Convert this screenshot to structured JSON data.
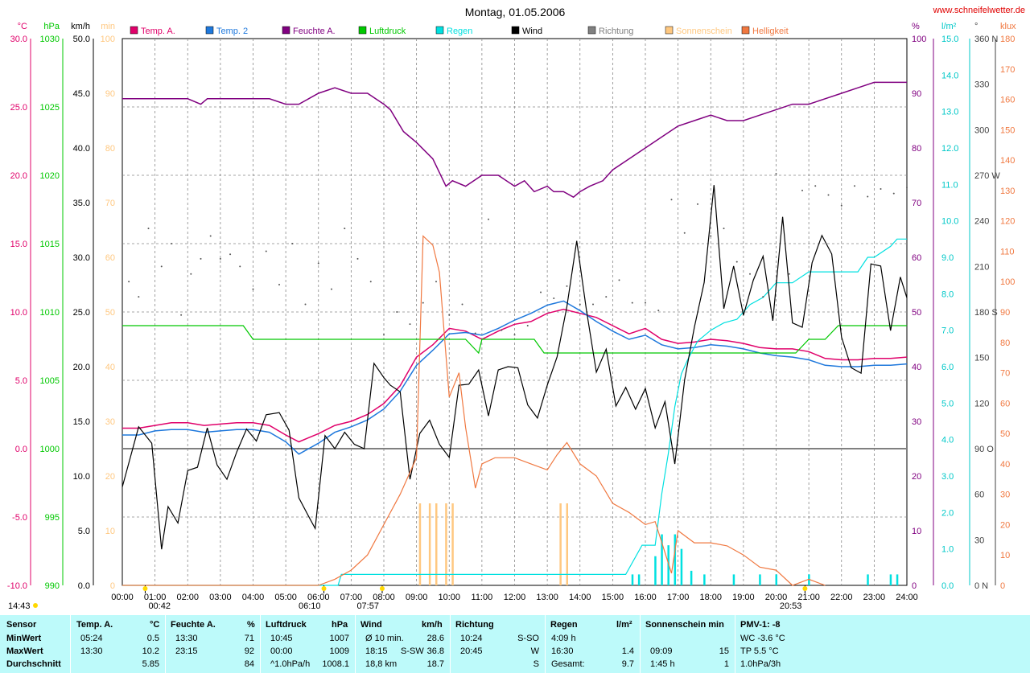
{
  "title": "Montag, 01.05.2006",
  "website": "www.schneifelwetter.de",
  "colors": {
    "temp_a": "#e0006a",
    "temp_2": "#1e78dc",
    "feuchte": "#800080",
    "luftdruck": "#00c800",
    "regen": "#00e0e0",
    "wind": "#000000",
    "richtung": "#808080",
    "sonnenschein": "#ffc880",
    "helligkeit": "#f07840",
    "stats_bg": "#bdfafa"
  },
  "legend": [
    {
      "label": "Temp. A.",
      "color": "#e0006a"
    },
    {
      "label": "Temp. 2",
      "color": "#1e78dc"
    },
    {
      "label": "Feuchte A.",
      "color": "#800080"
    },
    {
      "label": "Luftdruck",
      "color": "#00c800"
    },
    {
      "label": "Regen",
      "color": "#00e0e0"
    },
    {
      "label": "Wind",
      "color": "#000000"
    },
    {
      "label": "Richtung",
      "color": "#808080"
    },
    {
      "label": "Sonnenschein",
      "color": "#ffc880"
    },
    {
      "label": "Helligkeit",
      "color": "#f07840"
    }
  ],
  "axes": {
    "temp": {
      "unit": "°C",
      "ticks": [
        "30.0",
        "25.0",
        "20.0",
        "15.0",
        "10.0",
        "5.0",
        "0.0",
        "-5.0",
        "-10.0"
      ],
      "color": "#e0006a"
    },
    "hpa": {
      "unit": "hPa",
      "ticks": [
        "1030",
        "1025",
        "1020",
        "1015",
        "1010",
        "1005",
        "1000",
        "995",
        "990"
      ],
      "color": "#00c800"
    },
    "kmh": {
      "unit": "km/h",
      "ticks": [
        "50.0",
        "45.0",
        "40.0",
        "35.0",
        "30.0",
        "25.0",
        "20.0",
        "15.0",
        "10.0",
        "5.0",
        "0.0"
      ],
      "color": "#000000"
    },
    "min": {
      "unit": "min",
      "ticks": [
        "100",
        "90",
        "80",
        "70",
        "60",
        "50",
        "40",
        "30",
        "20",
        "10",
        "0"
      ],
      "color": "#ffc880"
    },
    "pct": {
      "unit": "%",
      "ticks": [
        "100",
        "90",
        "80",
        "70",
        "60",
        "50",
        "40",
        "30",
        "20",
        "10",
        "0"
      ],
      "color": "#800080"
    },
    "rain": {
      "unit": "l/m²",
      "ticks": [
        "15.0",
        "14.0",
        "13.0",
        "12.0",
        "11.0",
        "10.0",
        "9.0",
        "8.0",
        "7.0",
        "6.0",
        "5.0",
        "4.0",
        "3.0",
        "2.0",
        "1.0",
        "0.0"
      ],
      "color": "#00c8c8"
    },
    "dir": {
      "unit": "°",
      "ticks": [
        "360 N",
        "330",
        "300",
        "270 W",
        "240",
        "210",
        "180 S",
        "150",
        "120",
        "90 O",
        "60",
        "30",
        "0 N"
      ],
      "color": "#404040"
    },
    "klux": {
      "unit": "klux",
      "ticks": [
        "180",
        "170",
        "160",
        "150",
        "140",
        "130",
        "120",
        "110",
        "100",
        "90",
        "80",
        "70",
        "60",
        "50",
        "40",
        "30",
        "20",
        "10",
        "0"
      ],
      "color": "#f07840"
    },
    "time": {
      "ticks": [
        "00:00",
        "01:00",
        "02:00",
        "03:00",
        "04:00",
        "05:00",
        "06:00",
        "07:00",
        "08:00",
        "09:00",
        "10:00",
        "11:00",
        "12:00",
        "13:00",
        "14:00",
        "15:00",
        "16:00",
        "17:00",
        "18:00",
        "19:00",
        "20:00",
        "21:00",
        "22:00",
        "23:00",
        "24:00"
      ]
    }
  },
  "markers": {
    "sunrise_left": "14:43",
    "moon_marker": "00:42",
    "sunrise": "06:10",
    "sun_max": "07:57",
    "sunset": "20:53"
  },
  "chart_data": {
    "type": "line",
    "title": "Montag, 01.05.2006",
    "xlim": [
      0,
      24
    ],
    "series": [
      {
        "name": "Temp. A.",
        "axis": "temp",
        "ylim": [
          -10,
          30
        ],
        "x": [
          0,
          0.5,
          1,
          1.5,
          2,
          2.5,
          3,
          3.5,
          4,
          4.5,
          5,
          5.4,
          6,
          6.5,
          7,
          7.5,
          8,
          8.5,
          9,
          9.5,
          10,
          10.5,
          11,
          11.5,
          12,
          12.5,
          13,
          13.5,
          14,
          14.5,
          15,
          15.5,
          16,
          16.5,
          17,
          17.5,
          18,
          18.5,
          19,
          19.5,
          20,
          20.5,
          21,
          21.5,
          22,
          22.5,
          23,
          23.5,
          24
        ],
        "y": [
          1.5,
          1.5,
          1.7,
          1.9,
          1.9,
          1.7,
          1.8,
          1.9,
          1.9,
          1.7,
          1.0,
          0.5,
          1.1,
          1.7,
          2.0,
          2.5,
          3.3,
          4.6,
          6.7,
          7.6,
          8.8,
          8.6,
          8.0,
          8.6,
          9.1,
          9.3,
          9.9,
          10.2,
          9.9,
          9.6,
          9.0,
          8.4,
          8.8,
          8.0,
          7.7,
          7.8,
          8.0,
          7.9,
          7.7,
          7.4,
          7.3,
          7.3,
          7.1,
          6.6,
          6.5,
          6.5,
          6.6,
          6.6,
          6.7
        ]
      },
      {
        "name": "Temp. 2",
        "axis": "temp",
        "ylim": [
          -10,
          30
        ],
        "x": [
          0,
          0.5,
          1,
          1.5,
          2,
          2.5,
          3,
          3.5,
          4,
          4.5,
          5,
          5.4,
          6,
          6.5,
          7,
          7.5,
          8,
          8.5,
          9,
          9.5,
          10,
          10.5,
          11,
          11.5,
          12,
          12.5,
          13,
          13.5,
          14,
          14.5,
          15,
          15.5,
          16,
          16.5,
          17,
          17.5,
          18,
          18.5,
          19,
          19.5,
          20,
          20.5,
          21,
          21.5,
          22,
          22.5,
          23,
          23.5,
          24
        ],
        "y": [
          1.0,
          1.0,
          1.3,
          1.4,
          1.4,
          1.2,
          1.3,
          1.4,
          1.4,
          1.2,
          0.5,
          -0.4,
          0.4,
          1.2,
          1.6,
          2.1,
          2.9,
          4.2,
          6.1,
          7.2,
          8.4,
          8.5,
          8.3,
          8.8,
          9.4,
          9.9,
          10.5,
          10.8,
          10.1,
          9.3,
          8.6,
          8.0,
          8.3,
          7.6,
          7.3,
          7.4,
          7.6,
          7.5,
          7.3,
          7.0,
          6.8,
          6.7,
          6.5,
          6.1,
          6.0,
          6.0,
          6.1,
          6.1,
          6.2
        ]
      },
      {
        "name": "Feuchte A.",
        "axis": "pct",
        "ylim": [
          0,
          100
        ],
        "x": [
          0,
          1,
          2,
          2.4,
          2.6,
          3,
          4,
          4.5,
          5,
          5.4,
          6,
          6.5,
          7,
          7.5,
          8,
          8.2,
          8.6,
          9,
          9.5,
          9.9,
          10.1,
          10.5,
          11,
          11.5,
          12,
          12.3,
          12.6,
          13,
          13.2,
          13.5,
          13.8,
          14,
          14.3,
          14.7,
          15,
          15.5,
          16,
          16.5,
          17,
          17.5,
          18,
          18.5,
          19,
          19.5,
          20,
          20.5,
          21,
          21.5,
          22,
          22.5,
          23,
          24
        ],
        "y": [
          89,
          89,
          89,
          88,
          89,
          89,
          89,
          89,
          88,
          88,
          90,
          91,
          90,
          90,
          88,
          87,
          83,
          81,
          78,
          73,
          74,
          73,
          75,
          75,
          73,
          74,
          72,
          73,
          72,
          72,
          71,
          72,
          73,
          74,
          76,
          78,
          80,
          82,
          84,
          85,
          86,
          85,
          85,
          86,
          87,
          88,
          88,
          89,
          90,
          91,
          92,
          92
        ]
      },
      {
        "name": "Luftdruck",
        "axis": "hpa",
        "ylim": [
          990,
          1030
        ],
        "x": [
          0,
          3.7,
          4,
          10.5,
          10.9,
          11,
          12.6,
          12.9,
          20,
          20.6,
          21,
          21.5,
          21.9,
          24
        ],
        "y": [
          1009,
          1009,
          1008,
          1008,
          1007,
          1008,
          1008,
          1007,
          1007,
          1007,
          1008,
          1008,
          1009,
          1009
        ]
      },
      {
        "name": "Regen",
        "axis": "rain",
        "ylim": [
          0,
          15
        ],
        "x": [
          0,
          6.6,
          6.7,
          15.4,
          15.9,
          16.3,
          16.5,
          16.7,
          16.9,
          17.1,
          17.3,
          17.6,
          18,
          18.4,
          18.8,
          19.2,
          19.6,
          20,
          20.5,
          21,
          21.5,
          22,
          22.5,
          22.8,
          23,
          23.5,
          23.7,
          24
        ],
        "y": [
          0,
          0,
          0.3,
          0.3,
          1.1,
          1.1,
          2.5,
          3.6,
          4.9,
          5.8,
          6.2,
          6.7,
          7.0,
          7.2,
          7.3,
          7.7,
          7.9,
          8.3,
          8.3,
          8.6,
          8.6,
          8.6,
          8.6,
          9.0,
          9.0,
          9.3,
          9.5,
          9.5
        ]
      },
      {
        "name": "Wind",
        "axis": "kmh",
        "ylim": [
          0,
          50
        ],
        "x": [
          0,
          0.5,
          0.9,
          1.2,
          1.4,
          1.7,
          2.0,
          2.3,
          2.6,
          2.9,
          3.2,
          3.5,
          3.8,
          4.1,
          4.4,
          4.8,
          5.1,
          5.4,
          5.7,
          5.9,
          6.2,
          6.5,
          6.8,
          7.1,
          7.4,
          7.7,
          8.0,
          8.2,
          8.5,
          8.8,
          9.1,
          9.4,
          9.7,
          10.0,
          10.3,
          10.6,
          10.9,
          11.2,
          11.5,
          11.8,
          12.1,
          12.4,
          12.7,
          13.0,
          13.3,
          13.6,
          13.9,
          14.2,
          14.5,
          14.8,
          15.1,
          15.4,
          15.7,
          16.0,
          16.3,
          16.6,
          16.9,
          17.2,
          17.5,
          17.8,
          18.1,
          18.4,
          18.7,
          19.0,
          19.3,
          19.6,
          19.9,
          20.2,
          20.5,
          20.8,
          21.1,
          21.4,
          21.7,
          22.0,
          22.3,
          22.6,
          22.9,
          23.2,
          23.5,
          23.8,
          24.0
        ],
        "y": [
          9,
          14.5,
          13,
          3.3,
          7.2,
          5.7,
          10.5,
          10.8,
          14.4,
          11.0,
          9.7,
          12.2,
          14.3,
          13.2,
          15.6,
          15.8,
          14.2,
          8,
          6.3,
          5.2,
          13.7,
          12.5,
          14.0,
          12.9,
          12.5,
          20.3,
          19.0,
          18.3,
          17.7,
          9.7,
          13.9,
          15.1,
          12.9,
          11.7,
          18.3,
          18.4,
          19.7,
          15.5,
          19.7,
          20.0,
          19.9,
          16.5,
          15.3,
          18.3,
          20.9,
          25.5,
          31.5,
          25.1,
          19.5,
          21.6,
          16.4,
          18.1,
          16.1,
          18.0,
          14.4,
          16.8,
          11.1,
          18.8,
          23.6,
          27.7,
          36.6,
          25.3,
          29.2,
          24.7,
          27.9,
          30.1,
          24.2,
          33.7,
          24.0,
          23.6,
          29.5,
          32.0,
          30.3,
          22.7,
          19.9,
          19.4,
          29.4,
          29.2,
          23.3,
          28.2,
          26.3
        ]
      },
      {
        "name": "Helligkeit",
        "axis": "klux",
        "ylim": [
          0,
          180
        ],
        "x": [
          0,
          6,
          6.5,
          7,
          7.5,
          8,
          8.5,
          9,
          9.2,
          9.5,
          9.7,
          10,
          10.3,
          10.5,
          10.8,
          11,
          11.4,
          12,
          12.5,
          13,
          13.3,
          13.6,
          14,
          14.5,
          15,
          15.5,
          16,
          16.3,
          16.8,
          17,
          17.5,
          18,
          18.5,
          19,
          19.5,
          20,
          20.5,
          21,
          21.5
        ],
        "y": [
          0,
          0,
          2,
          5,
          10,
          20,
          30,
          42,
          115,
          112,
          103,
          62,
          70,
          52,
          32,
          40,
          42,
          42,
          40,
          38,
          43,
          47,
          40,
          36,
          27,
          24,
          20,
          21,
          4,
          18,
          14,
          14,
          13,
          10,
          6,
          5,
          0,
          2,
          0
        ]
      }
    ],
    "scatter": [
      {
        "name": "Richtung",
        "axis": "dir",
        "ylim": [
          0,
          360
        ],
        "x": [
          0.2,
          0.5,
          0.8,
          1.2,
          1.5,
          1.8,
          2.1,
          2.4,
          2.7,
          3.0,
          3.3,
          3.6,
          4.0,
          4.4,
          4.8,
          5.2,
          5.6,
          6.0,
          6.4,
          6.8,
          7.2,
          7.6,
          8.0,
          8.4,
          8.8,
          9.2,
          9.6,
          10.0,
          10.4,
          10.8,
          11.2,
          11.6,
          12.0,
          12.4,
          12.8,
          13.2,
          13.6,
          14.0,
          14.4,
          14.8,
          15.2,
          15.6,
          16.0,
          16.4,
          16.8,
          17.2,
          17.6,
          18.0,
          18.4,
          18.8,
          19.2,
          19.6,
          20.0,
          20.4,
          20.8,
          21.2,
          21.6,
          22.0,
          22.4,
          22.8,
          23.2,
          23.6,
          24.0
        ],
        "y": [
          200,
          190,
          235,
          210,
          225,
          178,
          205,
          215,
          230,
          215,
          218,
          210,
          195,
          220,
          198,
          225,
          185,
          212,
          195,
          235,
          215,
          200,
          165,
          180,
          172,
          186,
          200,
          178,
          185,
          166,
          241,
          168,
          165,
          171,
          193,
          189,
          197,
          185,
          185,
          190,
          201,
          186,
          186,
          181,
          254,
          232,
          251,
          230,
          235,
          213,
          205,
          190,
          271,
          205,
          260,
          263,
          257,
          250,
          263,
          256,
          261,
          258,
          262
        ]
      }
    ],
    "bars": [
      {
        "name": "Sonnenschein",
        "axis": "min",
        "ylim": [
          0,
          100
        ],
        "width_h": 0.07,
        "x": [
          9.1,
          9.4,
          9.6,
          9.9,
          10.1,
          13.4,
          13.6
        ],
        "y": [
          15,
          15,
          15,
          15,
          15,
          15,
          15
        ]
      },
      {
        "name": "Regen (Menge)",
        "axis": "rain",
        "ylim": [
          0,
          15
        ],
        "width_h": 0.07,
        "x": [
          15.6,
          15.8,
          16.3,
          16.5,
          16.7,
          16.9,
          17.1,
          17.4,
          17.8,
          18.7,
          19.5,
          20.0,
          21.0,
          22.8,
          23.5,
          23.7
        ],
        "y": [
          0.3,
          0.3,
          0.8,
          1.4,
          1.1,
          1.4,
          1.0,
          0.4,
          0.3,
          0.3,
          0.3,
          0.3,
          0.3,
          0.3,
          0.3,
          0.3
        ]
      }
    ]
  },
  "stats": {
    "headers": {
      "sensor": "Sensor",
      "temp": "Temp. A.",
      "temp_unit": "°C",
      "feuchte": "Feuchte A.",
      "feuchte_unit": "%",
      "druck": "Luftdruck",
      "druck_unit": "hPa",
      "wind": "Wind",
      "wind_unit": "km/h",
      "richtung": "Richtung",
      "regen": "Regen",
      "regen_unit": "l/m²",
      "sonne": "Sonnenschein min",
      "pmv": "PMV-1: -8"
    },
    "rows": [
      {
        "label": "MinWert",
        "temp_time": "05:24",
        "temp_val": "0.5",
        "feuchte_time": "13:30",
        "feuchte_val": "71",
        "druck_time": "10:45",
        "druck_val": "1007",
        "wind_time": "Ø 10 min.",
        "wind_val": "28.6",
        "richtung_time": "10:24",
        "richtung_val": "S-SO",
        "regen_time": "4:09 h",
        "regen_val": "",
        "sonne_time": "",
        "sonne_val": "",
        "pmv": "WC -3.6 °C"
      },
      {
        "label": "MaxWert",
        "temp_time": "13:30",
        "temp_val": "10.2",
        "feuchte_time": "23:15",
        "feuchte_val": "92",
        "druck_time": "00:00",
        "druck_val": "1009",
        "wind_time": "18:15",
        "wind_extra": "S-SW",
        "wind_val": "36.8",
        "richtung_time": "20:45",
        "richtung_val": "W",
        "regen_time": "16:30",
        "regen_val": "1.4",
        "sonne_time": "09:09",
        "sonne_val": "15",
        "pmv": "TP 5.5 °C"
      },
      {
        "label": "Durchschnitt",
        "temp_time": "",
        "temp_val": "5.85",
        "feuchte_time": "",
        "feuchte_val": "84",
        "druck_time": "^1.0hPa/h",
        "druck_val": "1008.1",
        "wind_time": "18,8 km",
        "wind_val": "18.7",
        "richtung_time": "",
        "richtung_val": "S",
        "regen_time": "Gesamt:",
        "regen_val": "9.7",
        "sonne_time": "1:45 h",
        "sonne_val": "1",
        "pmv": "1.0hPa/3h"
      }
    ]
  }
}
